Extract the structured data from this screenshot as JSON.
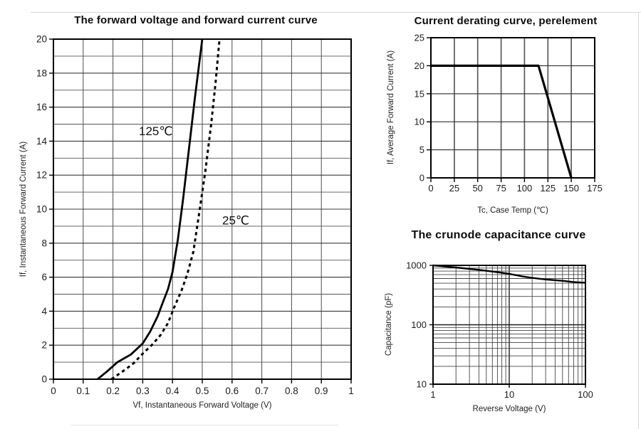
{
  "page": {
    "background": "#ffffff",
    "rule_color": "#d8d8d8"
  },
  "chart_data": [
    {
      "id": "fvfc",
      "type": "line",
      "title": "The forward voltage and forward current curve",
      "xlabel": "Vf, Instantaneous Forward Voltage (V)",
      "ylabel": "If, Instantaneous Forward Current (A)",
      "xscale": "linear",
      "yscale": "linear",
      "xlim": [
        0,
        1
      ],
      "ylim": [
        0,
        20
      ],
      "grid": {
        "x_step": 0.1,
        "y_step": 1
      },
      "xticks": [
        {
          "v": 0,
          "t": "0"
        },
        {
          "v": 0.1,
          "t": "0.1"
        },
        {
          "v": 0.2,
          "t": "0.2"
        },
        {
          "v": 0.3,
          "t": "0.3"
        },
        {
          "v": 0.4,
          "t": "0.4"
        },
        {
          "v": 0.5,
          "t": "0.5"
        },
        {
          "v": 0.6,
          "t": "0.6"
        },
        {
          "v": 0.7,
          "t": "0.7"
        },
        {
          "v": 0.8,
          "t": "0.8"
        },
        {
          "v": 0.9,
          "t": "0.9"
        },
        {
          "v": 1,
          "t": "1"
        }
      ],
      "yticks": [
        {
          "v": 0,
          "t": "0"
        },
        {
          "v": 2,
          "t": "2"
        },
        {
          "v": 4,
          "t": "4"
        },
        {
          "v": 6,
          "t": "6"
        },
        {
          "v": 8,
          "t": "8"
        },
        {
          "v": 10,
          "t": "10"
        },
        {
          "v": 12,
          "t": "12"
        },
        {
          "v": 14,
          "t": "14"
        },
        {
          "v": 16,
          "t": "16"
        },
        {
          "v": 18,
          "t": "18"
        },
        {
          "v": 20,
          "t": "20"
        }
      ],
      "series": [
        {
          "name": "125℃",
          "style": "solid",
          "color": "#000000",
          "points": [
            [
              0.148,
              0
            ],
            [
              0.18,
              0.45
            ],
            [
              0.215,
              1.0
            ],
            [
              0.26,
              1.45
            ],
            [
              0.3,
              2.1
            ],
            [
              0.325,
              2.8
            ],
            [
              0.35,
              3.7
            ],
            [
              0.365,
              4.4
            ],
            [
              0.385,
              5.3
            ],
            [
              0.4,
              6.3
            ],
            [
              0.418,
              8.2
            ],
            [
              0.435,
              10.5
            ],
            [
              0.455,
              13.5
            ],
            [
              0.475,
              16.5
            ],
            [
              0.5,
              20
            ]
          ]
        },
        {
          "name": "25℃",
          "style": "dashed",
          "color": "#000000",
          "points": [
            [
              0.195,
              0
            ],
            [
              0.24,
              0.55
            ],
            [
              0.27,
              0.95
            ],
            [
              0.3,
              1.5
            ],
            [
              0.33,
              2.0
            ],
            [
              0.36,
              2.6
            ],
            [
              0.385,
              3.3
            ],
            [
              0.405,
              4.2
            ],
            [
              0.43,
              5.2
            ],
            [
              0.45,
              6.2
            ],
            [
              0.47,
              7.5
            ],
            [
              0.49,
              9.8
            ],
            [
              0.51,
              12.2
            ],
            [
              0.53,
              15
            ],
            [
              0.545,
              17.5
            ],
            [
              0.558,
              20
            ]
          ]
        }
      ],
      "annotations": [
        {
          "text": "125℃",
          "x": 0.287,
          "y": 14.35
        },
        {
          "text": "25℃",
          "x": 0.567,
          "y": 9.1
        }
      ]
    },
    {
      "id": "derating",
      "type": "line",
      "title": "Current derating curve, perelement",
      "xlabel": "Tc, Case Temp (℃)",
      "ylabel": "If, Average Forward Current (A)",
      "xscale": "linear",
      "yscale": "linear",
      "xlim": [
        0,
        175
      ],
      "ylim": [
        0,
        25
      ],
      "grid": {
        "x_step": 25,
        "y_step": 5
      },
      "xticks": [
        {
          "v": 0,
          "t": "0"
        },
        {
          "v": 25,
          "t": "25"
        },
        {
          "v": 50,
          "t": "50"
        },
        {
          "v": 75,
          "t": "75"
        },
        {
          "v": 100,
          "t": "100"
        },
        {
          "v": 125,
          "t": "125"
        },
        {
          "v": 150,
          "t": "150"
        },
        {
          "v": 175,
          "t": "175"
        }
      ],
      "yticks": [
        {
          "v": 0,
          "t": "0"
        },
        {
          "v": 5,
          "t": "5"
        },
        {
          "v": 10,
          "t": "10"
        },
        {
          "v": 15,
          "t": "15"
        },
        {
          "v": 20,
          "t": "20"
        },
        {
          "v": 25,
          "t": "25"
        }
      ],
      "series": [
        {
          "name": "derating",
          "style": "solid",
          "color": "#000000",
          "points": [
            [
              0,
              20
            ],
            [
              115,
              20
            ],
            [
              150,
              0
            ]
          ]
        }
      ],
      "annotations": []
    },
    {
      "id": "cap",
      "type": "line",
      "title": "The crunode capacitance curve",
      "xlabel": "Reverse Voltage (V)",
      "ylabel": "Capacitance (pF)",
      "xscale": "log",
      "yscale": "log",
      "xlim": [
        1,
        100
      ],
      "ylim": [
        10,
        1000
      ],
      "grid": {
        "log_minors": true
      },
      "xticks": [
        {
          "v": 1,
          "t": "1"
        },
        {
          "v": 10,
          "t": "10"
        },
        {
          "v": 100,
          "t": "100"
        }
      ],
      "yticks": [
        {
          "v": 10,
          "t": "10"
        },
        {
          "v": 100,
          "t": "100"
        },
        {
          "v": 1000,
          "t": "1000"
        }
      ],
      "series": [
        {
          "name": "capacitance",
          "style": "solid",
          "color": "#000000",
          "points": [
            [
              1,
              1000
            ],
            [
              2,
              920
            ],
            [
              4,
              840
            ],
            [
              7,
              770
            ],
            [
              10,
              720
            ],
            [
              15,
              650
            ],
            [
              20,
              615
            ],
            [
              30,
              580
            ],
            [
              50,
              550
            ],
            [
              70,
              525
            ],
            [
              100,
              510
            ]
          ]
        }
      ],
      "annotations": []
    }
  ]
}
